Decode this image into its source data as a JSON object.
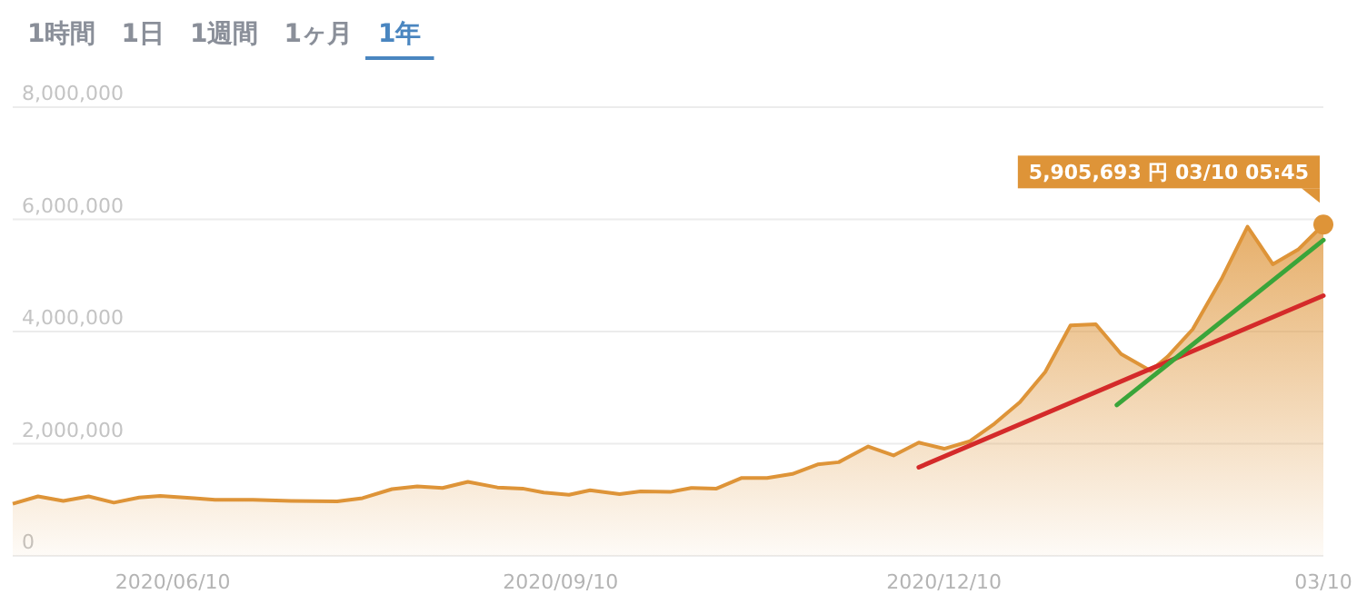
{
  "chart_data": {
    "type": "area",
    "annotations": [
      "1時間",
      "1日",
      "1週間",
      "1ヶ月",
      "1年",
      {
        "text": "5,905,693 円 03/10 05:45",
        "x": "2021-03-10",
        "y": 5905693
      }
    ],
    "xlim": [
      "2020-05-03",
      "2021-03-10"
    ],
    "xticks": [
      {
        "value": "2020-06-10",
        "label": "2020/06/10"
      },
      {
        "value": "2020-09-10",
        "label": "2020/09/10"
      },
      {
        "value": "2020-12-10",
        "label": "2020/12/10"
      },
      {
        "value": "2021-03-10",
        "label": "03/10"
      }
    ],
    "ylim": [
      0,
      8000000
    ],
    "yticks": [
      {
        "value": 0,
        "label": "0"
      },
      {
        "value": 2000000,
        "label": "2,000,000"
      },
      {
        "value": 4000000,
        "label": "4,000,000"
      },
      {
        "value": 6000000,
        "label": "6,000,000"
      },
      {
        "value": 8000000,
        "label": "8,000,000"
      }
    ],
    "grid": "y",
    "legend": false,
    "marker": "none",
    "series": [
      {
        "color": "#de9438",
        "x": [
          "2020-05-03",
          "2020-05-09",
          "2020-05-15",
          "2020-05-21",
          "2020-05-27",
          "2020-06-02",
          "2020-06-07",
          "2020-06-15",
          "2020-06-20",
          "2020-06-29",
          "2020-07-08",
          "2020-07-19",
          "2020-07-25",
          "2020-08-01",
          "2020-08-07",
          "2020-08-13",
          "2020-08-19",
          "2020-08-26",
          "2020-09-01",
          "2020-09-06",
          "2020-09-12",
          "2020-09-17",
          "2020-09-24",
          "2020-09-29",
          "2020-10-06",
          "2020-10-11",
          "2020-10-17",
          "2020-10-23",
          "2020-10-29",
          "2020-11-04",
          "2020-11-10",
          "2020-11-15",
          "2020-11-22",
          "2020-11-28",
          "2020-12-04",
          "2020-12-10",
          "2020-12-16",
          "2020-12-22",
          "2020-12-28",
          "2021-01-03",
          "2021-01-09",
          "2021-01-15",
          "2021-01-21",
          "2021-01-28",
          "2021-02-01",
          "2021-02-07",
          "2021-02-14",
          "2021-02-20",
          "2021-02-26",
          "2021-03-04",
          "2021-03-10"
        ],
        "values": [
          930000,
          1060000,
          980000,
          1060000,
          950000,
          1040000,
          1070000,
          1030000,
          1000000,
          1000000,
          980000,
          970000,
          1030000,
          1190000,
          1240000,
          1210000,
          1320000,
          1220000,
          1200000,
          1130000,
          1090000,
          1170000,
          1100000,
          1150000,
          1140000,
          1210000,
          1200000,
          1390000,
          1390000,
          1460000,
          1630000,
          1670000,
          1950000,
          1790000,
          2020000,
          1910000,
          2040000,
          2360000,
          2740000,
          3280000,
          4110000,
          4130000,
          3600000,
          3300000,
          3550000,
          4040000,
          4960000,
          5870000,
          5200000,
          5460000,
          5905693
        ]
      },
      {
        "type": "line",
        "color": "#d42a2a",
        "x": [
          "2020-12-04",
          "2021-03-10"
        ],
        "values": [
          1580000,
          4640000
        ]
      },
      {
        "type": "line",
        "color": "#3aa53a",
        "x": [
          "2021-01-20",
          "2021-03-10"
        ],
        "values": [
          2690000,
          5630000
        ]
      }
    ]
  }
}
